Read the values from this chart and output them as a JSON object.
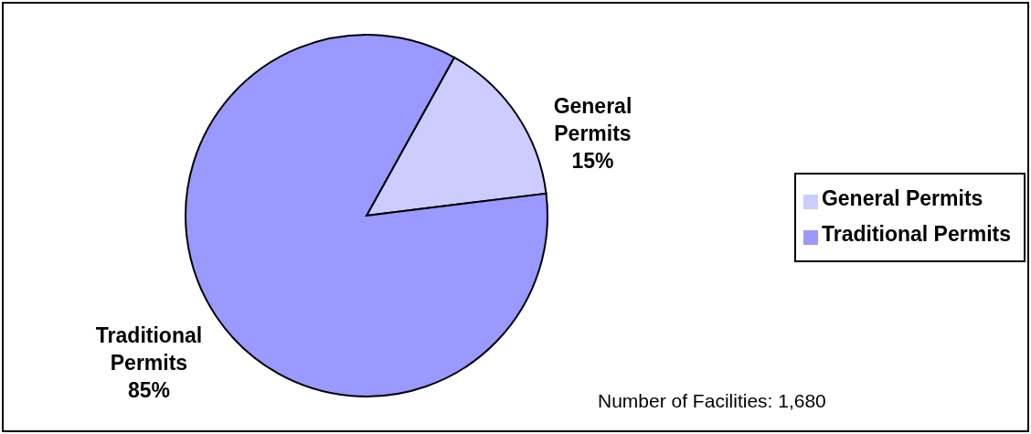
{
  "chart_data": {
    "type": "pie",
    "categories": [
      "General Permits",
      "Traditional Permits"
    ],
    "values": [
      15,
      85
    ],
    "colors": [
      "#ccccff",
      "#9999ff"
    ],
    "value_labels": [
      "15%",
      "85%"
    ],
    "legend": "right",
    "annotations": [
      "Number of Facilities: 1,680"
    ]
  }
}
